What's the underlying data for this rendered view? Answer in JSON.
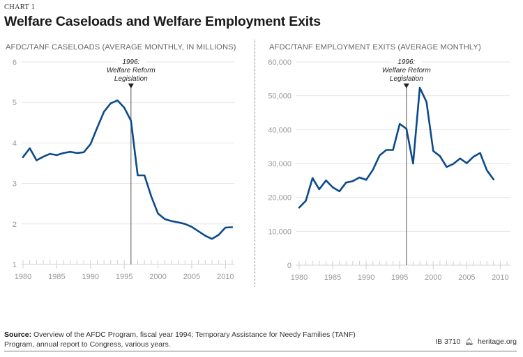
{
  "header": {
    "chart_label": "CHART 1",
    "title": "Welfare Caseloads and Welfare Employment Exits"
  },
  "chart_data": [
    {
      "type": "line",
      "title": "AFDC/TANF CASELOADS (AVERAGE MONTHLY, IN MILLIONS)",
      "xlabel": "",
      "ylabel": "",
      "xlim": [
        1980,
        2011
      ],
      "ylim": [
        1,
        6
      ],
      "xticks": [
        1980,
        1985,
        1990,
        1995,
        2000,
        2005,
        2010
      ],
      "yticks": [
        1,
        2,
        3,
        4,
        5,
        6
      ],
      "ytick_labels": [
        "1",
        "2",
        "3",
        "4",
        "5",
        "6"
      ],
      "grid": true,
      "series_color": "#0b4a8b",
      "annotation": {
        "x": 1996,
        "lines": [
          "1996:",
          "Welfare Reform",
          "Legislation"
        ]
      },
      "x": [
        1980,
        1981,
        1982,
        1983,
        1984,
        1985,
        1986,
        1987,
        1988,
        1989,
        1990,
        1991,
        1992,
        1993,
        1994,
        1995,
        1996,
        1997,
        1998,
        1999,
        2000,
        2001,
        2002,
        2003,
        2004,
        2005,
        2006,
        2007,
        2008,
        2009,
        2010,
        2011
      ],
      "values": [
        3.65,
        3.87,
        3.57,
        3.66,
        3.73,
        3.7,
        3.75,
        3.78,
        3.75,
        3.77,
        3.97,
        4.38,
        4.77,
        4.98,
        5.05,
        4.87,
        4.55,
        3.2,
        3.2,
        2.68,
        2.26,
        2.12,
        2.07,
        2.04,
        2.0,
        1.93,
        1.82,
        1.71,
        1.63,
        1.73,
        1.91,
        1.92
      ]
    },
    {
      "type": "line",
      "title": "AFDC/TANF EMPLOYMENT EXITS (AVERAGE MONTHLY)",
      "xlabel": "",
      "ylabel": "",
      "xlim": [
        1980,
        2011
      ],
      "ylim": [
        0,
        60000
      ],
      "xticks": [
        1980,
        1985,
        1990,
        1995,
        2000,
        2005,
        2010
      ],
      "yticks": [
        0,
        10000,
        20000,
        30000,
        40000,
        50000,
        60000
      ],
      "ytick_labels": [
        "0",
        "10,000",
        "20,000",
        "30,000",
        "40,000",
        "50,000",
        "60,000"
      ],
      "grid": true,
      "series_color": "#0b4a8b",
      "annotation": {
        "x": 1996,
        "lines": [
          "1996:",
          "Welfare Reform",
          "Legislation"
        ]
      },
      "x": [
        1980,
        1981,
        1982,
        1983,
        1984,
        1985,
        1986,
        1987,
        1988,
        1989,
        1990,
        1991,
        1992,
        1993,
        1994,
        1995,
        1996,
        1997,
        1998,
        1999,
        2000,
        2001,
        2002,
        2003,
        2004,
        2005,
        2006,
        2007,
        2008,
        2009
      ],
      "values": [
        17000,
        19000,
        25700,
        22400,
        25000,
        23000,
        21800,
        24400,
        24800,
        25900,
        25200,
        28100,
        32400,
        34000,
        34000,
        41700,
        40300,
        30000,
        52400,
        48200,
        33700,
        32200,
        29000,
        29900,
        31500,
        30100,
        32000,
        33100,
        28000,
        25300
      ]
    }
  ],
  "footer": {
    "source_label": "Source:",
    "source_text": " Overview of the AFDC Program, fiscal year 1994; Temporary Assistance for Needy Families (TANF) Program, annual report to Congress, various years.",
    "report_id": "IB 3710",
    "logo_icon": "liberty-bell-icon",
    "site": "heritage.org"
  }
}
